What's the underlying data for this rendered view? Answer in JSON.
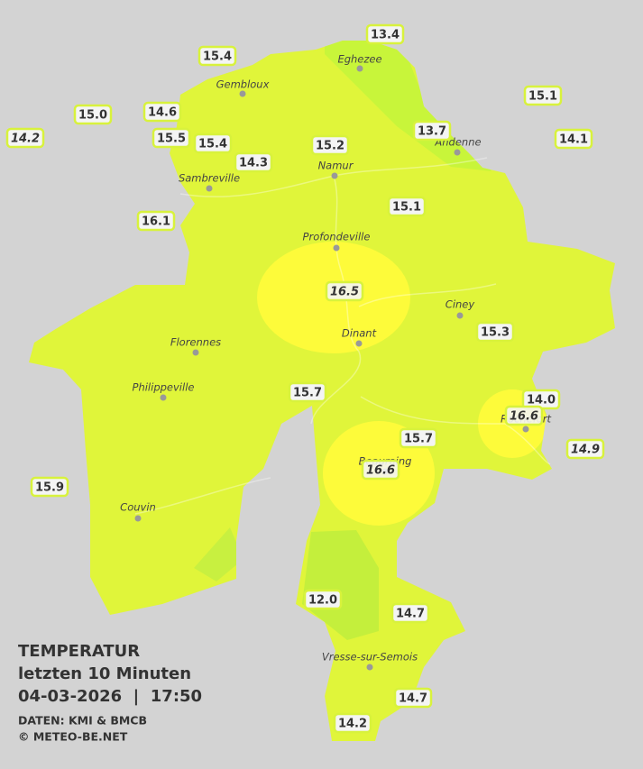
{
  "legend": {
    "title": "TEMPERATUR",
    "period": "letzten 10 Minuten",
    "datetime": "04-03-2026  |  17:50",
    "source": "DATEN: KMI & BMCB",
    "copyright": "© METEO-BE.NET"
  },
  "cities": [
    "Eghezee",
    "Gembloux",
    "Andenne",
    "Namur",
    "Sambreville",
    "Profondeville",
    "Ciney",
    "Dinant",
    "Florennes",
    "Philippeville",
    "Rochefort",
    "Beauraing",
    "Couvin",
    "Vresse-sur-Semois"
  ],
  "stations": [
    {
      "value": "13.4",
      "italic": false
    },
    {
      "value": "15.4",
      "italic": false
    },
    {
      "value": "15.1",
      "italic": false
    },
    {
      "value": "15.0",
      "italic": false
    },
    {
      "value": "14.6",
      "italic": false
    },
    {
      "value": "14.2",
      "italic": true
    },
    {
      "value": "15.5",
      "italic": false
    },
    {
      "value": "15.4",
      "italic": false
    },
    {
      "value": "13.7",
      "italic": false
    },
    {
      "value": "14.1",
      "italic": false
    },
    {
      "value": "15.2",
      "italic": false
    },
    {
      "value": "14.3",
      "italic": false
    },
    {
      "value": "15.1",
      "italic": false
    },
    {
      "value": "16.1",
      "italic": false
    },
    {
      "value": "16.5",
      "italic": true
    },
    {
      "value": "15.3",
      "italic": false
    },
    {
      "value": "15.7",
      "italic": false
    },
    {
      "value": "14.0",
      "italic": false
    },
    {
      "value": "16.6",
      "italic": true
    },
    {
      "value": "15.7",
      "italic": false
    },
    {
      "value": "14.9",
      "italic": true
    },
    {
      "value": "16.6",
      "italic": true
    },
    {
      "value": "15.9",
      "italic": false
    },
    {
      "value": "12.0",
      "italic": false
    },
    {
      "value": "14.7",
      "italic": false
    },
    {
      "value": "14.7",
      "italic": false
    },
    {
      "value": "14.2",
      "italic": false
    }
  ]
}
